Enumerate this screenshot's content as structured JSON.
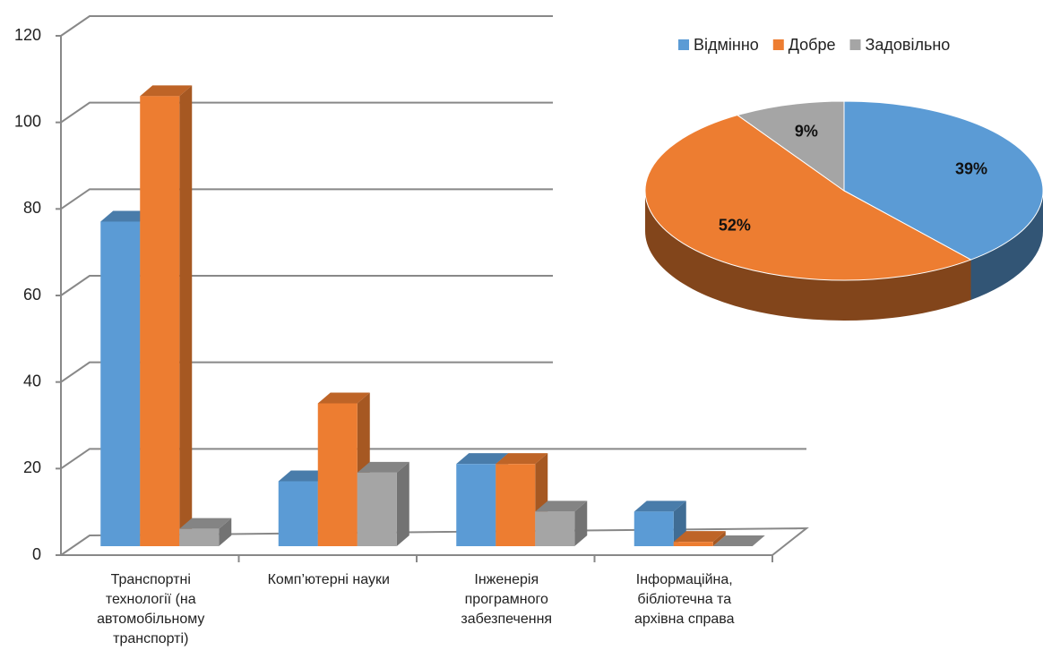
{
  "chart_data": [
    {
      "type": "bar3d",
      "categories": [
        "Транспортні технології (на автомобільному транспорті)",
        "Комп’ютерні науки",
        "Інженерія програмного забезпечення",
        "Інформаційна, бібліотечна та архівна справа"
      ],
      "series": [
        {
          "name": "Відмінно",
          "color": "#5b9bd5",
          "values": [
            75,
            15,
            19,
            8
          ]
        },
        {
          "name": "Добре",
          "color": "#ed7d31",
          "values": [
            104,
            33,
            19,
            1
          ]
        },
        {
          "name": "Задовільно",
          "color": "#a5a5a5",
          "values": [
            4,
            17,
            8,
            0
          ]
        }
      ],
      "ylim": [
        0,
        120
      ],
      "yticks": [
        0,
        20,
        40,
        60,
        80,
        100,
        120
      ],
      "grid": true
    },
    {
      "type": "pie3d",
      "categories": [
        "Відмінно",
        "Добре",
        "Задовільно"
      ],
      "values": [
        39,
        52,
        9
      ],
      "value_labels": [
        "39%",
        "52%",
        "9%"
      ],
      "colors": [
        "#5b9bd5",
        "#ed7d31",
        "#a5a5a5"
      ],
      "legend": "top"
    }
  ]
}
